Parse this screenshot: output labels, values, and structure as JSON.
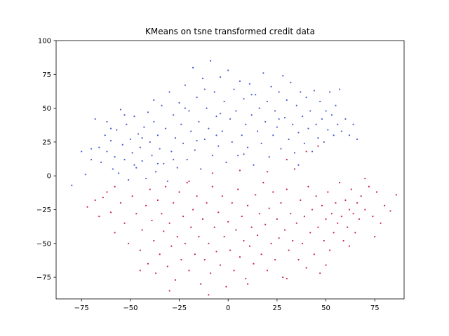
{
  "chart_data": {
    "type": "scatter",
    "title": "KMeans on tsne transformed credit data",
    "xlabel": "",
    "ylabel": "",
    "xlim": [
      -88,
      90
    ],
    "ylim": [
      -91,
      100
    ],
    "xticks": [
      -75,
      -50,
      -25,
      0,
      25,
      50,
      75
    ],
    "yticks": [
      -75,
      -50,
      -25,
      0,
      25,
      50,
      75,
      100
    ],
    "grid": false,
    "legend": "none",
    "colors": {
      "cluster_upper": "#4a5fd1",
      "cluster_lower": "#cc2645"
    },
    "series": [
      {
        "color": "#4a5fd1",
        "points": [
          [
            -80,
            -7
          ],
          [
            -75,
            18
          ],
          [
            -73,
            1
          ],
          [
            -70,
            12
          ],
          [
            -68,
            42
          ],
          [
            -66,
            21
          ],
          [
            -65,
            10
          ],
          [
            -63,
            30
          ],
          [
            -62,
            40
          ],
          [
            -62,
            18
          ],
          [
            -60,
            26
          ],
          [
            -59,
            5
          ],
          [
            -58,
            14
          ],
          [
            -57,
            34
          ],
          [
            -56,
            2
          ],
          [
            -55,
            49
          ],
          [
            -54,
            23
          ],
          [
            -53,
            12
          ],
          [
            -52,
            38
          ],
          [
            -51,
            -3
          ],
          [
            -50,
            27
          ],
          [
            -49,
            17
          ],
          [
            -48,
            44
          ],
          [
            -47,
            6
          ],
          [
            -46,
            31
          ],
          [
            -45,
            21
          ],
          [
            -44,
            11
          ],
          [
            -43,
            36
          ],
          [
            -42,
            -2
          ],
          [
            -41,
            47
          ],
          [
            -40,
            25
          ],
          [
            -39,
            15
          ],
          [
            -38,
            40
          ],
          [
            -37,
            3
          ],
          [
            -36,
            30
          ],
          [
            -35,
            20
          ],
          [
            -34,
            52
          ],
          [
            -33,
            9
          ],
          [
            -32,
            35
          ],
          [
            -31,
            -4
          ],
          [
            -30,
            62
          ],
          [
            -29,
            18
          ],
          [
            -28,
            45
          ],
          [
            -27,
            28
          ],
          [
            -26,
            6
          ],
          [
            -25,
            54
          ],
          [
            -24,
            38
          ],
          [
            -23,
            24
          ],
          [
            -22,
            67
          ],
          [
            -21,
            12
          ],
          [
            -20,
            48
          ],
          [
            -19,
            33
          ],
          [
            -18,
            80
          ],
          [
            -17,
            19
          ],
          [
            -16,
            58
          ],
          [
            -15,
            40
          ],
          [
            -14,
            5
          ],
          [
            -13,
            72
          ],
          [
            -12,
            27
          ],
          [
            -11,
            50
          ],
          [
            -10,
            35
          ],
          [
            -9,
            85
          ],
          [
            -8,
            15
          ],
          [
            -7,
            62
          ],
          [
            -6,
            44
          ],
          [
            -5,
            22
          ],
          [
            -4,
            73
          ],
          [
            -3,
            33
          ],
          [
            -2,
            55
          ],
          [
            -1,
            10
          ],
          [
            0,
            78
          ],
          [
            1,
            42
          ],
          [
            2,
            25
          ],
          [
            3,
            64
          ],
          [
            4,
            48
          ],
          [
            5,
            15
          ],
          [
            6,
            70
          ],
          [
            7,
            30
          ],
          [
            8,
            57
          ],
          [
            9,
            38
          ],
          [
            10,
            21
          ],
          [
            11,
            68
          ],
          [
            12,
            45
          ],
          [
            13,
            8
          ],
          [
            14,
            60
          ],
          [
            15,
            33
          ],
          [
            16,
            50
          ],
          [
            17,
            24
          ],
          [
            18,
            76
          ],
          [
            19,
            40
          ],
          [
            20,
            55
          ],
          [
            21,
            14
          ],
          [
            22,
            66
          ],
          [
            23,
            30
          ],
          [
            24,
            48
          ],
          [
            25,
            36
          ],
          [
            26,
            62
          ],
          [
            27,
            20
          ],
          [
            28,
            74
          ],
          [
            29,
            43
          ],
          [
            30,
            56
          ],
          [
            31,
            27
          ],
          [
            32,
            69
          ],
          [
            33,
            38
          ],
          [
            34,
            17
          ],
          [
            35,
            52
          ],
          [
            36,
            32
          ],
          [
            37,
            62
          ],
          [
            38,
            44
          ],
          [
            39,
            24
          ],
          [
            40,
            58
          ],
          [
            41,
            35
          ],
          [
            42,
            48
          ],
          [
            43,
            18
          ],
          [
            44,
            63
          ],
          [
            45,
            38
          ],
          [
            46,
            28
          ],
          [
            47,
            55
          ],
          [
            48,
            42
          ],
          [
            49,
            25
          ],
          [
            50,
            48
          ],
          [
            51,
            34
          ],
          [
            52,
            62
          ],
          [
            53,
            45
          ],
          [
            54,
            30
          ],
          [
            55,
            52
          ],
          [
            56,
            38
          ],
          [
            57,
            64
          ],
          [
            58,
            33
          ],
          [
            60,
            42
          ],
          [
            62,
            30
          ],
          [
            64,
            38
          ],
          [
            66,
            27
          ],
          [
            -36,
            9
          ],
          [
            -22,
            50
          ],
          [
            -6,
            30
          ],
          [
            8,
            16
          ],
          [
            -53,
            45
          ],
          [
            -60,
            35
          ],
          [
            -44,
            28
          ],
          [
            -28,
            12
          ],
          [
            -16,
            26
          ],
          [
            -4,
            46
          ],
          [
            12,
            60
          ],
          [
            26,
            42
          ],
          [
            36,
            8
          ],
          [
            -70,
            20
          ],
          [
            -48,
            8
          ],
          [
            -38,
            56
          ],
          [
            -12,
            64
          ]
        ]
      },
      {
        "color": "#cc2645",
        "points": [
          [
            -72,
            -23
          ],
          [
            -68,
            -18
          ],
          [
            -66,
            -30
          ],
          [
            -62,
            -12
          ],
          [
            -60,
            -27
          ],
          [
            -58,
            -42
          ],
          [
            -55,
            -20
          ],
          [
            -53,
            -35
          ],
          [
            -51,
            -50
          ],
          [
            -49,
            -15
          ],
          [
            -47,
            -28
          ],
          [
            -45,
            -55
          ],
          [
            -44,
            -40
          ],
          [
            -42,
            -22
          ],
          [
            -41,
            -65
          ],
          [
            -40,
            -10
          ],
          [
            -39,
            -33
          ],
          [
            -38,
            -48
          ],
          [
            -37,
            -72
          ],
          [
            -36,
            -18
          ],
          [
            -35,
            -58
          ],
          [
            -34,
            -28
          ],
          [
            -33,
            -41
          ],
          [
            -32,
            -8
          ],
          [
            -31,
            -67
          ],
          [
            -30,
            -35
          ],
          [
            -29,
            -52
          ],
          [
            -28,
            -20
          ],
          [
            -27,
            -77
          ],
          [
            -26,
            -45
          ],
          [
            -25,
            -12
          ],
          [
            -24,
            -62
          ],
          [
            -23,
            -30
          ],
          [
            -22,
            -50
          ],
          [
            -21,
            -5
          ],
          [
            -20,
            -70
          ],
          [
            -19,
            -38
          ],
          [
            -18,
            -25
          ],
          [
            -17,
            -58
          ],
          [
            -16,
            -15
          ],
          [
            -15,
            -45
          ],
          [
            -14,
            -80
          ],
          [
            -13,
            -32
          ],
          [
            -12,
            -62
          ],
          [
            -11,
            -20
          ],
          [
            -10,
            -50
          ],
          [
            -9,
            -72
          ],
          [
            -8,
            -8
          ],
          [
            -7,
            -38
          ],
          [
            -6,
            -56
          ],
          [
            -5,
            -27
          ],
          [
            -4,
            -66
          ],
          [
            -3,
            -15
          ],
          [
            -2,
            -45
          ],
          [
            -1,
            -82
          ],
          [
            0,
            -34
          ],
          [
            1,
            -55
          ],
          [
            2,
            -20
          ],
          [
            3,
            -70
          ],
          [
            4,
            -40
          ],
          [
            5,
            -10
          ],
          [
            6,
            -60
          ],
          [
            7,
            -30
          ],
          [
            8,
            -48
          ],
          [
            9,
            -76
          ],
          [
            10,
            -22
          ],
          [
            11,
            -52
          ],
          [
            12,
            -38
          ],
          [
            13,
            -65
          ],
          [
            14,
            -14
          ],
          [
            15,
            -44
          ],
          [
            16,
            -28
          ],
          [
            17,
            -58
          ],
          [
            18,
            -5
          ],
          [
            19,
            -36
          ],
          [
            20,
            -70
          ],
          [
            21,
            -24
          ],
          [
            22,
            -50
          ],
          [
            23,
            -12
          ],
          [
            24,
            -62
          ],
          [
            25,
            -32
          ],
          [
            26,
            -46
          ],
          [
            27,
            -20
          ],
          [
            28,
            -75
          ],
          [
            29,
            -40
          ],
          [
            30,
            -10
          ],
          [
            31,
            -55
          ],
          [
            32,
            -28
          ],
          [
            33,
            -48
          ],
          [
            34,
            5
          ],
          [
            35,
            -35
          ],
          [
            36,
            -62
          ],
          [
            37,
            -18
          ],
          [
            38,
            -50
          ],
          [
            39,
            -30
          ],
          [
            40,
            -68
          ],
          [
            41,
            -8
          ],
          [
            42,
            -42
          ],
          [
            43,
            -25
          ],
          [
            44,
            -58
          ],
          [
            45,
            -15
          ],
          [
            46,
            -38
          ],
          [
            47,
            -72
          ],
          [
            48,
            -22
          ],
          [
            49,
            -48
          ],
          [
            50,
            -32
          ],
          [
            51,
            -12
          ],
          [
            52,
            -55
          ],
          [
            53,
            -28
          ],
          [
            54,
            -42
          ],
          [
            55,
            -20
          ],
          [
            56,
            -35
          ],
          [
            57,
            -5
          ],
          [
            58,
            -30
          ],
          [
            59,
            -48
          ],
          [
            60,
            -18
          ],
          [
            61,
            -38
          ],
          [
            62,
            -25
          ],
          [
            63,
            -10
          ],
          [
            64,
            -28
          ],
          [
            65,
            -42
          ],
          [
            66,
            -20
          ],
          [
            67,
            -32
          ],
          [
            68,
            -15
          ],
          [
            70,
            -25
          ],
          [
            72,
            -8
          ],
          [
            74,
            -30
          ],
          [
            75,
            -45
          ],
          [
            76,
            -12
          ],
          [
            78,
            -35
          ],
          [
            80,
            -22
          ],
          [
            83,
            -26
          ],
          [
            86,
            -14
          ],
          [
            -20,
            -4
          ],
          [
            -8,
            2
          ],
          [
            6,
            4
          ],
          [
            20,
            3
          ],
          [
            30,
            12
          ],
          [
            40,
            18
          ],
          [
            46,
            22
          ],
          [
            -45,
            -70
          ],
          [
            -30,
            -85
          ],
          [
            -10,
            -88
          ],
          [
            10,
            -80
          ],
          [
            30,
            -76
          ],
          [
            50,
            -66
          ],
          [
            62,
            -52
          ],
          [
            -58,
            -8
          ],
          [
            -64,
            -16
          ],
          [
            70,
            -2
          ]
        ]
      }
    ]
  }
}
